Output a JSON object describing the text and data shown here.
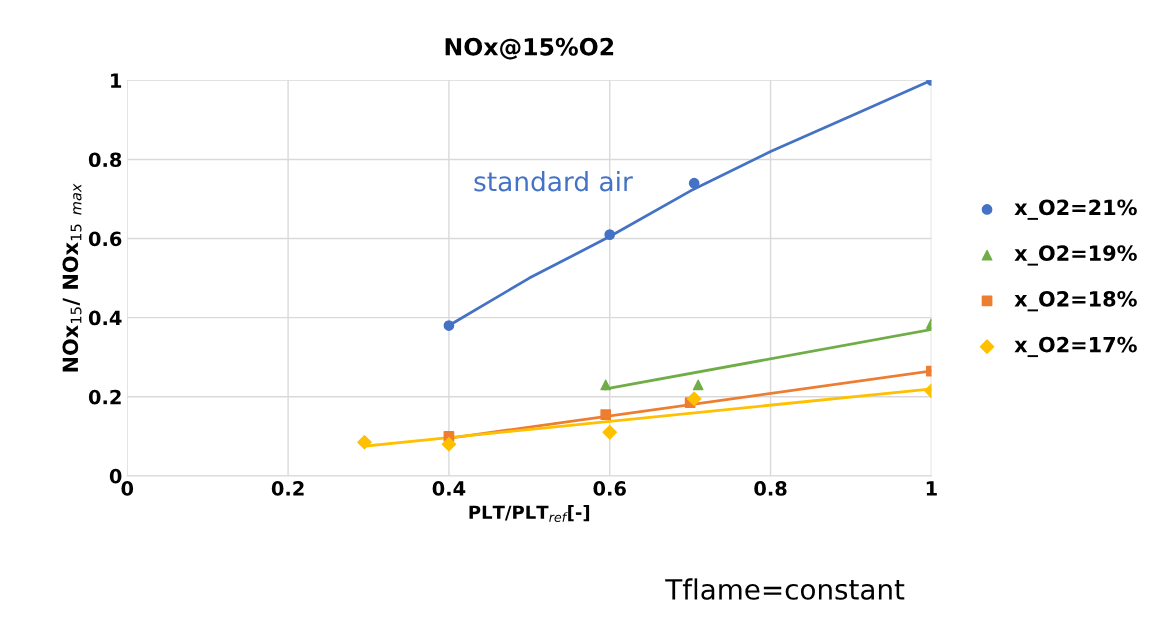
{
  "chart_data": {
    "type": "scatter",
    "title": "NOx@15%O2",
    "xlabel": "PLT/PLT$_{ref}$[-]",
    "ylabel": "NOx$_{15}$/ NOx$_{15}$ $_{max}$",
    "xlim": [
      0,
      1
    ],
    "xticks": [
      0,
      0.2,
      0.4,
      0.6,
      0.8,
      1
    ],
    "ylim": [
      0,
      1
    ],
    "yticks": [
      0,
      0.2,
      0.4,
      0.6,
      0.8,
      1
    ],
    "grid": true,
    "legend": "right",
    "annotations": [
      "standard air",
      "Tflame=constant"
    ],
    "series": [
      {
        "name": "x_O2=21%",
        "color": "#4472c4",
        "marker": "circle",
        "x": [
          0.4,
          0.6,
          0.705,
          1
        ],
        "values": [
          0.38,
          0.61,
          0.74,
          1.0
        ]
      },
      {
        "name": "x_O2=19%",
        "color": "#70ad47",
        "marker": "triangle",
        "x": [
          0.595,
          0.71,
          1
        ],
        "values": [
          0.23,
          0.23,
          0.385
        ]
      },
      {
        "name": "x_O2=18%",
        "color": "#ed7d31",
        "marker": "square",
        "x": [
          0.4,
          0.595,
          0.7,
          1
        ],
        "values": [
          0.1,
          0.155,
          0.185,
          0.265
        ]
      },
      {
        "name": "x_O2=17%",
        "color": "#ffc000",
        "marker": "diamond",
        "x": [
          0.295,
          0.4,
          0.6,
          0.705,
          1
        ],
        "values": [
          0.085,
          0.08,
          0.11,
          0.195,
          0.215
        ]
      },
      {
        "type": "line",
        "color": "#4472c4",
        "x": [
          0.4,
          0.5,
          0.6,
          0.7,
          0.8,
          0.9,
          1
        ],
        "values": [
          0.38,
          0.5,
          0.605,
          0.72,
          0.82,
          0.91,
          1.0
        ]
      },
      {
        "type": "line",
        "color": "#70ad47",
        "x": [
          0.595,
          1
        ],
        "values": [
          0.22,
          0.37
        ]
      },
      {
        "type": "line",
        "color": "#ed7d31",
        "x": [
          0.4,
          1
        ],
        "values": [
          0.095,
          0.265
        ]
      },
      {
        "type": "line",
        "color": "#ffc000",
        "x": [
          0.295,
          1
        ],
        "values": [
          0.075,
          0.22
        ]
      }
    ]
  }
}
